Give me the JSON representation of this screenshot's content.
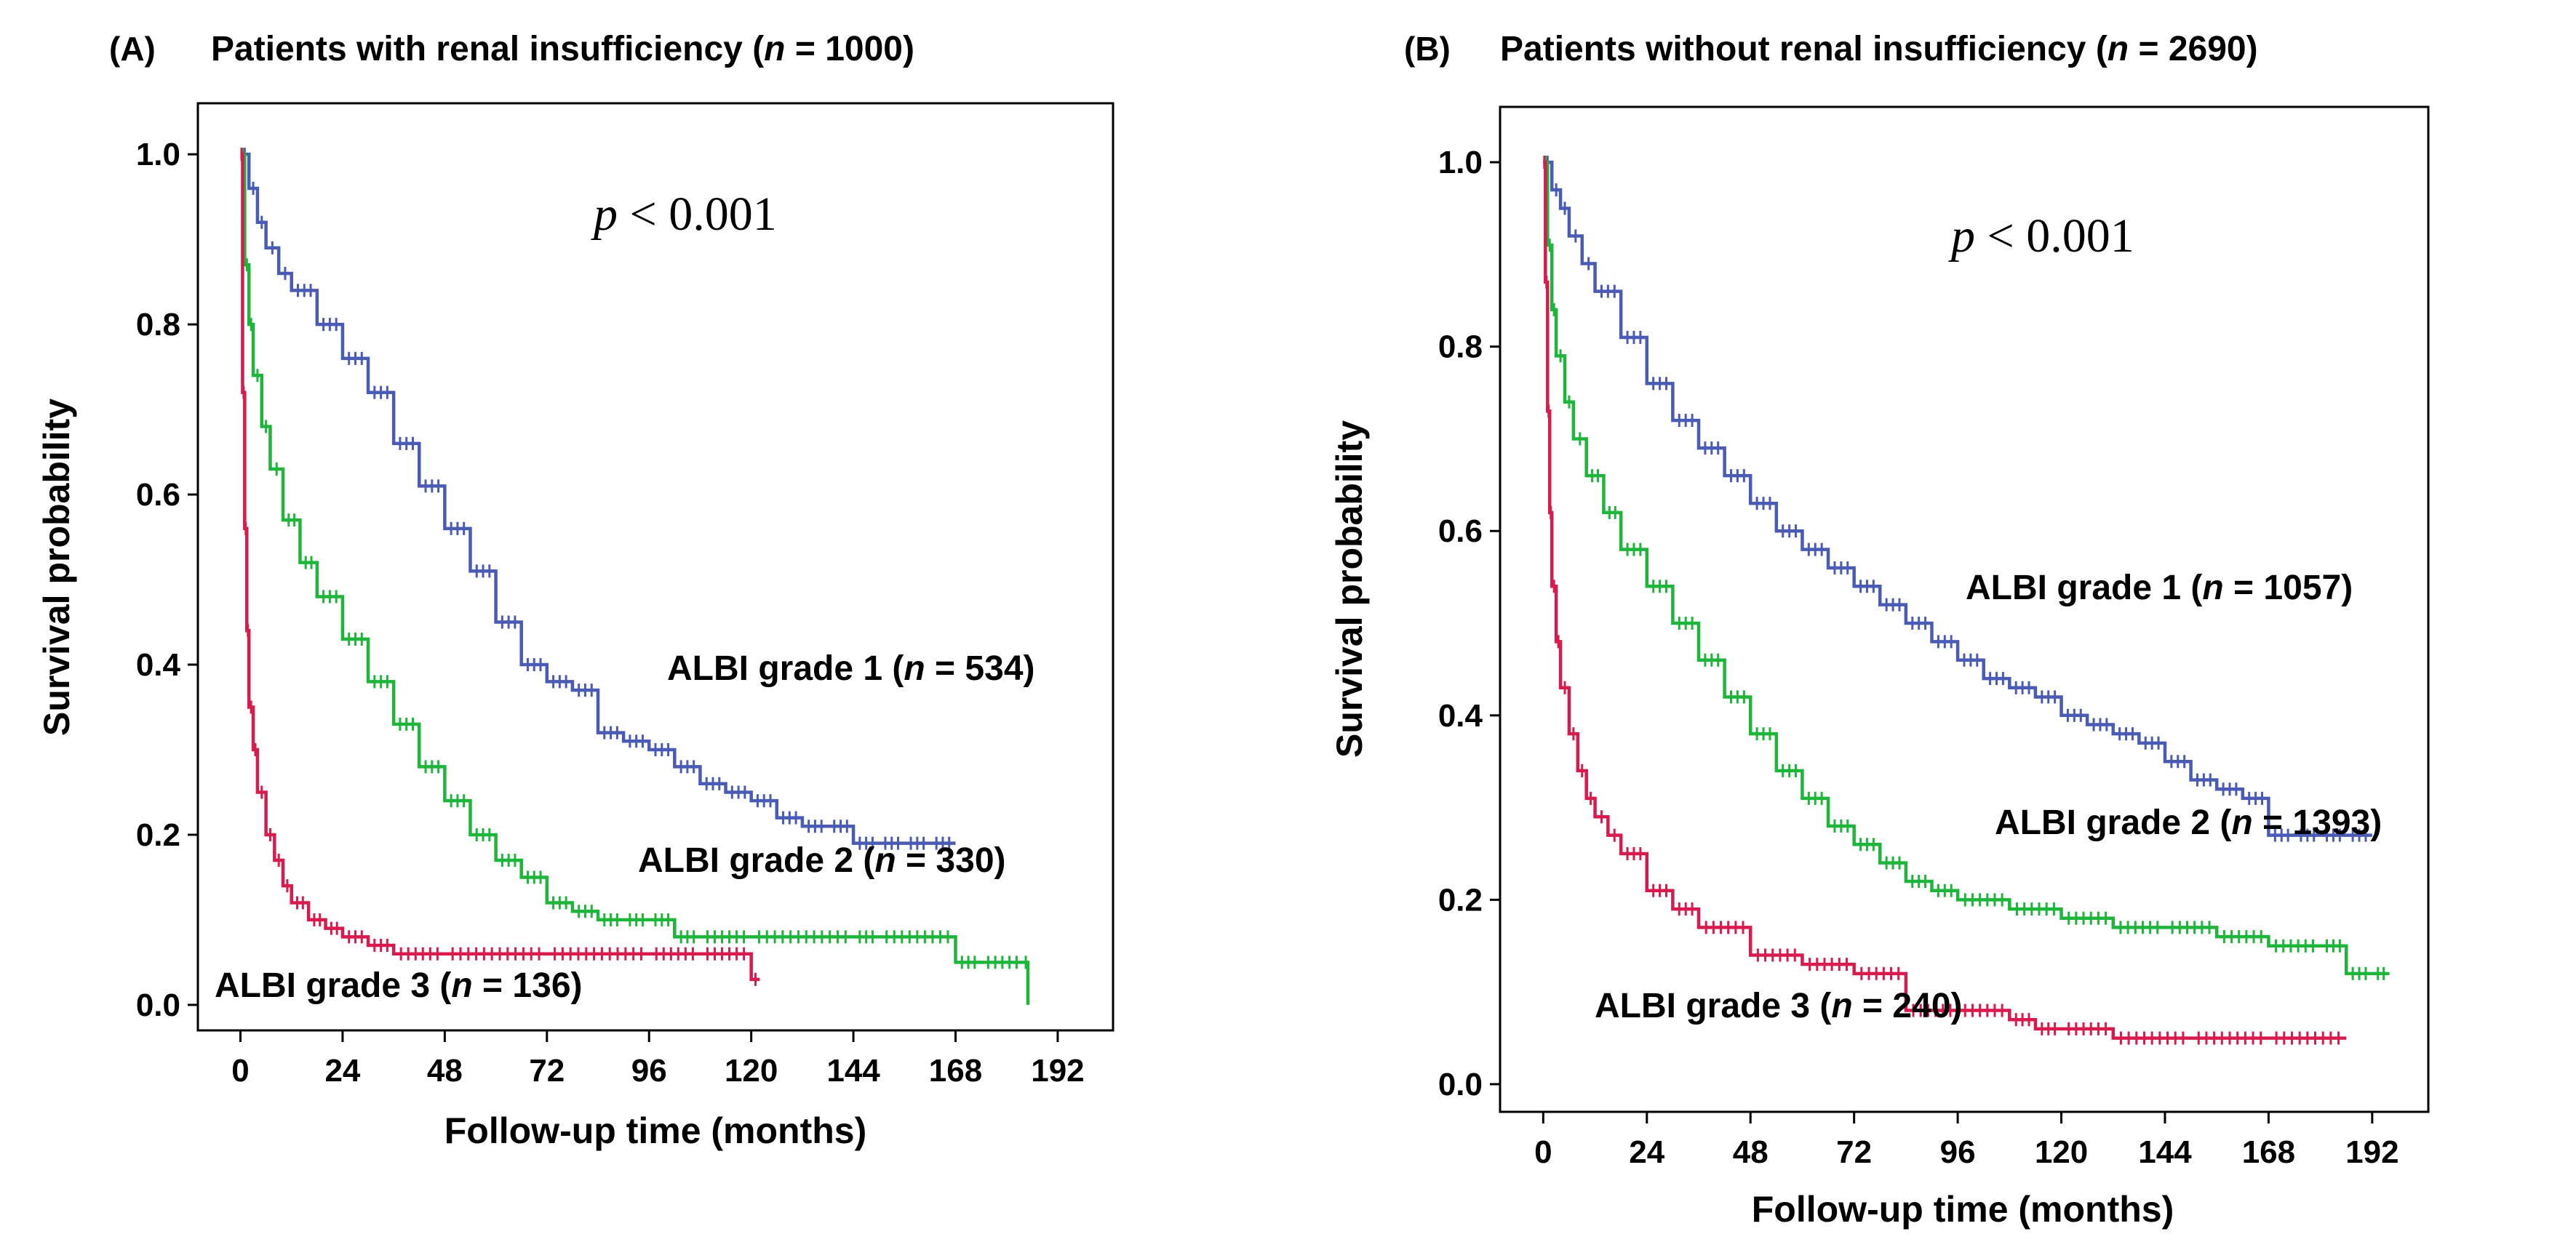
{
  "chart_data": [
    {
      "type": "line",
      "kind": "kaplan-meier",
      "panel_label": "(A)",
      "title_pre": "Patients with renal insufficiency (",
      "title_n_symbol": "n",
      "title_post": " = 1000)",
      "xlabel": "Follow-up time (months)",
      "ylabel": "Survival probability",
      "xlim": [
        -10,
        205
      ],
      "ylim": [
        -0.03,
        1.06
      ],
      "xticks": [
        0,
        24,
        48,
        72,
        96,
        120,
        144,
        168,
        192
      ],
      "yticks": [
        0.0,
        0.2,
        0.4,
        0.6,
        0.8,
        1.0
      ],
      "ytick_labels": [
        "0.0",
        "0.2",
        "0.4",
        "0.6",
        "0.8",
        "1.0"
      ],
      "annotation": {
        "p_symbol": "p",
        "p_text": " < 0.001"
      },
      "series": [
        {
          "name": "ALBI grade 1",
          "label_pre": "ALBI grade 1 (",
          "label_n_symbol": "n",
          "label_post": " = 534)",
          "color": "#4a5bb5",
          "x": [
            0,
            2,
            4,
            6,
            9,
            12,
            18,
            24,
            30,
            36,
            42,
            48,
            54,
            60,
            66,
            72,
            78,
            84,
            90,
            96,
            102,
            108,
            114,
            120,
            126,
            132,
            138,
            144,
            150,
            156,
            162,
            168
          ],
          "y": [
            1.0,
            0.96,
            0.92,
            0.89,
            0.86,
            0.84,
            0.8,
            0.76,
            0.72,
            0.66,
            0.61,
            0.56,
            0.51,
            0.45,
            0.4,
            0.38,
            0.37,
            0.32,
            0.31,
            0.3,
            0.28,
            0.26,
            0.25,
            0.24,
            0.22,
            0.21,
            0.21,
            0.19,
            0.19,
            0.19,
            0.19,
            0.19
          ]
        },
        {
          "name": "ALBI grade 2",
          "label_pre": "ALBI grade 2 (",
          "label_n_symbol": "n",
          "label_post": " = 330)",
          "color": "#1db53a",
          "x": [
            0,
            1,
            2,
            3,
            5,
            7,
            10,
            14,
            18,
            24,
            30,
            36,
            42,
            48,
            54,
            60,
            66,
            72,
            78,
            84,
            90,
            96,
            102,
            108,
            120,
            144,
            150,
            168,
            174,
            184,
            185
          ],
          "y": [
            1.0,
            0.87,
            0.8,
            0.74,
            0.68,
            0.63,
            0.57,
            0.52,
            0.48,
            0.43,
            0.38,
            0.33,
            0.28,
            0.24,
            0.2,
            0.17,
            0.15,
            0.12,
            0.11,
            0.1,
            0.1,
            0.1,
            0.08,
            0.08,
            0.08,
            0.08,
            0.08,
            0.05,
            0.05,
            0.05,
            0.0
          ]
        },
        {
          "name": "ALBI grade 3",
          "label_pre": "ALBI grade 3 (",
          "label_n_symbol": "n",
          "label_post": " = 136)",
          "color": "#d81b4d",
          "x": [
            0,
            0.5,
            1,
            1.5,
            2,
            3,
            4,
            6,
            8,
            10,
            12,
            16,
            20,
            24,
            30,
            36,
            48,
            72,
            96,
            108,
            120,
            122
          ],
          "y": [
            1.0,
            0.72,
            0.56,
            0.44,
            0.35,
            0.3,
            0.25,
            0.2,
            0.17,
            0.14,
            0.12,
            0.1,
            0.09,
            0.08,
            0.07,
            0.06,
            0.06,
            0.06,
            0.06,
            0.06,
            0.03,
            0.03
          ]
        }
      ]
    },
    {
      "type": "line",
      "kind": "kaplan-meier",
      "panel_label": "(B)",
      "title_pre": "Patients without renal insufficiency (",
      "title_n_symbol": "n",
      "title_post": " = 2690)",
      "xlabel": "Follow-up time (months)",
      "ylabel": "Survival probability",
      "xlim": [
        -10,
        205
      ],
      "ylim": [
        -0.03,
        1.06
      ],
      "xticks": [
        0,
        24,
        48,
        72,
        96,
        120,
        144,
        168,
        192
      ],
      "yticks": [
        0.0,
        0.2,
        0.4,
        0.6,
        0.8,
        1.0
      ],
      "ytick_labels": [
        "0.0",
        "0.2",
        "0.4",
        "0.6",
        "0.8",
        "1.0"
      ],
      "annotation": {
        "p_symbol": "p",
        "p_text": " < 0.001"
      },
      "series": [
        {
          "name": "ALBI grade 1",
          "label_pre": "ALBI grade 1 (",
          "label_n_symbol": "n",
          "label_post": " = 1057)",
          "color": "#4a5bb5",
          "x": [
            0,
            2,
            4,
            6,
            9,
            12,
            18,
            24,
            30,
            36,
            42,
            48,
            54,
            60,
            66,
            72,
            78,
            84,
            90,
            96,
            102,
            108,
            114,
            120,
            126,
            132,
            138,
            144,
            150,
            156,
            162,
            168,
            174,
            180,
            186,
            192
          ],
          "y": [
            1.0,
            0.97,
            0.95,
            0.92,
            0.89,
            0.86,
            0.81,
            0.76,
            0.72,
            0.69,
            0.66,
            0.63,
            0.6,
            0.58,
            0.56,
            0.54,
            0.52,
            0.5,
            0.48,
            0.46,
            0.44,
            0.43,
            0.42,
            0.4,
            0.39,
            0.38,
            0.37,
            0.35,
            0.33,
            0.32,
            0.31,
            0.27,
            0.27,
            0.27,
            0.27,
            0.27
          ]
        },
        {
          "name": "ALBI grade 2",
          "label_pre": "ALBI grade 2 (",
          "label_n_symbol": "n",
          "label_post": " = 1393)",
          "color": "#1db53a",
          "x": [
            0,
            1,
            2,
            3,
            5,
            7,
            10,
            14,
            18,
            24,
            30,
            36,
            42,
            48,
            54,
            60,
            66,
            72,
            78,
            84,
            90,
            96,
            108,
            120,
            132,
            144,
            156,
            168,
            180,
            186,
            192,
            196
          ],
          "y": [
            1.0,
            0.91,
            0.84,
            0.79,
            0.74,
            0.7,
            0.66,
            0.62,
            0.58,
            0.54,
            0.5,
            0.46,
            0.42,
            0.38,
            0.34,
            0.31,
            0.28,
            0.26,
            0.24,
            0.22,
            0.21,
            0.2,
            0.19,
            0.18,
            0.17,
            0.17,
            0.16,
            0.15,
            0.15,
            0.12,
            0.12,
            0.12
          ]
        },
        {
          "name": "ALBI grade 3",
          "label_pre": "ALBI grade 3 (",
          "label_n_symbol": "n",
          "label_post": " = 240)",
          "color": "#d81b4d",
          "x": [
            0,
            0.5,
            1,
            1.5,
            2,
            3,
            4,
            6,
            8,
            10,
            12,
            15,
            18,
            24,
            30,
            36,
            48,
            60,
            72,
            84,
            96,
            108,
            114,
            120,
            132,
            150,
            168,
            186
          ],
          "y": [
            1.0,
            0.87,
            0.73,
            0.62,
            0.54,
            0.48,
            0.43,
            0.38,
            0.34,
            0.31,
            0.29,
            0.27,
            0.25,
            0.21,
            0.19,
            0.17,
            0.14,
            0.13,
            0.12,
            0.08,
            0.08,
            0.07,
            0.06,
            0.06,
            0.05,
            0.05,
            0.05,
            0.05
          ]
        }
      ]
    }
  ]
}
